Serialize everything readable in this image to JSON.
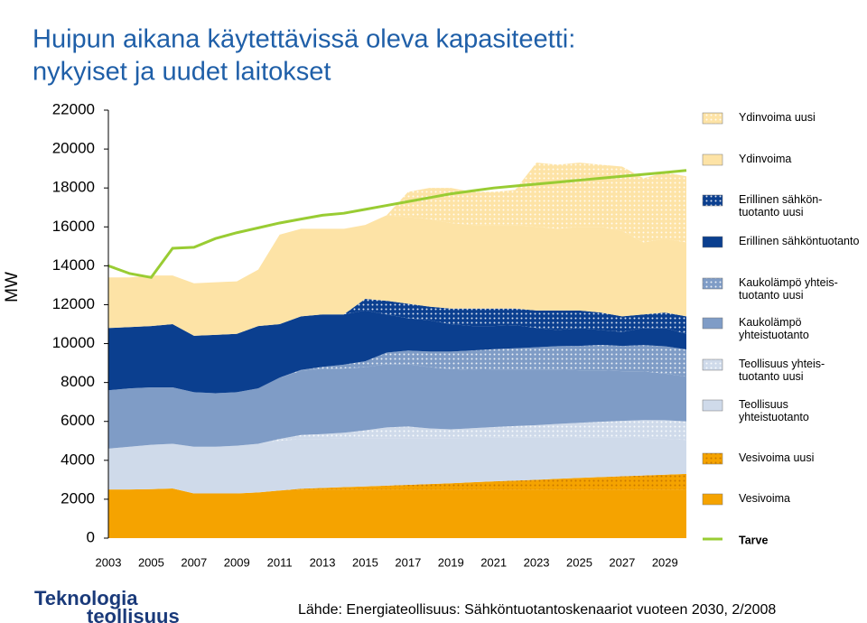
{
  "chart_data": {
    "type": "stacked-area",
    "title_lines": [
      "Huipun aikana käytettävissä oleva kapasiteetti:",
      "nykyiset ja uudet laitokset"
    ],
    "ylabel": "MW",
    "x": [
      2003,
      2004,
      2005,
      2006,
      2007,
      2008,
      2009,
      2010,
      2011,
      2012,
      2013,
      2014,
      2015,
      2016,
      2017,
      2018,
      2019,
      2020,
      2021,
      2022,
      2023,
      2024,
      2025,
      2026,
      2027,
      2028,
      2029,
      2030
    ],
    "xlim": [
      2003,
      2030
    ],
    "xticks": [
      2003,
      2005,
      2007,
      2009,
      2011,
      2013,
      2015,
      2017,
      2019,
      2021,
      2023,
      2025,
      2027,
      2029
    ],
    "ylim": [
      0,
      22000
    ],
    "yticks": [
      0,
      2000,
      4000,
      6000,
      8000,
      10000,
      12000,
      14000,
      16000,
      18000,
      20000,
      22000
    ],
    "series": [
      {
        "name": "Vesivoima",
        "color": "#f5a300",
        "dotted": false,
        "values": [
          2500,
          2500,
          2520,
          2550,
          2300,
          2300,
          2300,
          2350,
          2450,
          2500,
          2500,
          2500,
          2500,
          2500,
          2500,
          2500,
          2500,
          2500,
          2500,
          2500,
          2500,
          2500,
          2500,
          2500,
          2500,
          2500,
          2500,
          2500
        ]
      },
      {
        "name": "Vesivoima uusi",
        "color": "#f5a300",
        "dotted": true,
        "values": [
          0,
          0,
          0,
          0,
          0,
          0,
          0,
          0,
          0,
          40,
          80,
          120,
          160,
          200,
          240,
          280,
          320,
          370,
          420,
          460,
          500,
          550,
          600,
          640,
          680,
          720,
          760,
          800
        ]
      },
      {
        "name": "Teollisuus yhteistuotanto",
        "color": "#cfdaea",
        "dotted": false,
        "values": [
          2100,
          2200,
          2280,
          2300,
          2400,
          2400,
          2450,
          2500,
          2550,
          2560,
          2520,
          2500,
          2480,
          2440,
          2400,
          2360,
          2320,
          2280,
          2240,
          2200,
          2160,
          2120,
          2080,
          2040,
          2000,
          1950,
          1850,
          1750
        ]
      },
      {
        "name": "Teollisuus yhteis-tuotanto uusi",
        "color": "#cfdaea",
        "dotted": true,
        "values": [
          0,
          0,
          0,
          0,
          0,
          0,
          0,
          0,
          100,
          200,
          250,
          300,
          400,
          550,
          600,
          500,
          450,
          500,
          550,
          600,
          650,
          700,
          750,
          800,
          850,
          900,
          950,
          950
        ]
      },
      {
        "name": "Kaukolämpö yhteistuotanto",
        "color": "#7f9cc6",
        "dotted": false,
        "values": [
          3000,
          3000,
          2950,
          2900,
          2800,
          2750,
          2750,
          2850,
          3150,
          3300,
          3350,
          3300,
          3250,
          3250,
          3200,
          3150,
          3100,
          3000,
          2950,
          2900,
          2850,
          2800,
          2700,
          2650,
          2550,
          2500,
          2400,
          2300
        ]
      },
      {
        "name": "Kaukolämpö yhteis-tuotanto uusi",
        "color": "#7f9cc6",
        "dotted": true,
        "values": [
          0,
          0,
          0,
          0,
          0,
          0,
          0,
          0,
          0,
          50,
          100,
          200,
          300,
          600,
          700,
          800,
          900,
          1000,
          1050,
          1100,
          1150,
          1200,
          1250,
          1300,
          1300,
          1350,
          1400,
          1400
        ]
      },
      {
        "name": "Erillinen sähköntuotanto",
        "color": "#0b3f8f",
        "dotted": false,
        "values": [
          3200,
          3150,
          3150,
          3250,
          2900,
          3000,
          3000,
          3200,
          2750,
          2750,
          2700,
          2580,
          2610,
          1960,
          1660,
          1610,
          1410,
          1250,
          1190,
          1190,
          990,
          830,
          920,
          770,
          720,
          880,
          940,
          800
        ]
      },
      {
        "name": "Erillinen sähkön-tuotanto uusi",
        "color": "#0b3f8f",
        "dotted": true,
        "values": [
          0,
          0,
          0,
          0,
          0,
          0,
          0,
          0,
          0,
          0,
          0,
          0,
          600,
          700,
          750,
          700,
          800,
          900,
          900,
          850,
          900,
          1000,
          900,
          900,
          800,
          700,
          800,
          900
        ]
      },
      {
        "name": "Ydinvoima",
        "color": "#fde3a6",
        "dotted": false,
        "values": [
          2600,
          2550,
          2600,
          2500,
          2700,
          2700,
          2700,
          2900,
          4600,
          4500,
          4400,
          4400,
          3800,
          4400,
          4450,
          4500,
          4400,
          4300,
          4300,
          4300,
          4300,
          4200,
          4300,
          4400,
          4400,
          3700,
          3800,
          3800
        ]
      },
      {
        "name": "Ydinvoima uusi",
        "color": "#fde3a6",
        "dotted": true,
        "values": [
          0,
          0,
          0,
          0,
          0,
          0,
          0,
          0,
          0,
          0,
          0,
          0,
          0,
          0,
          1300,
          1600,
          1800,
          1700,
          1700,
          1800,
          3300,
          3300,
          3300,
          3200,
          3300,
          3300,
          3400,
          3400
        ]
      }
    ],
    "line": {
      "name": "Tarve",
      "color": "#99cc33",
      "values": [
        14000,
        13600,
        13400,
        14900,
        14950,
        15400,
        15700,
        15950,
        16200,
        16400,
        16600,
        16700,
        16900,
        17100,
        17300,
        17500,
        17700,
        17850,
        18000,
        18100,
        18200,
        18300,
        18400,
        18500,
        18600,
        18700,
        18800,
        18900
      ]
    },
    "source": "Lähde: Energiateollisuus: Sähköntuotantoskenaariot vuoteen 2030, 2/2008",
    "logo": [
      "Teknologia",
      "teollisuus"
    ]
  }
}
